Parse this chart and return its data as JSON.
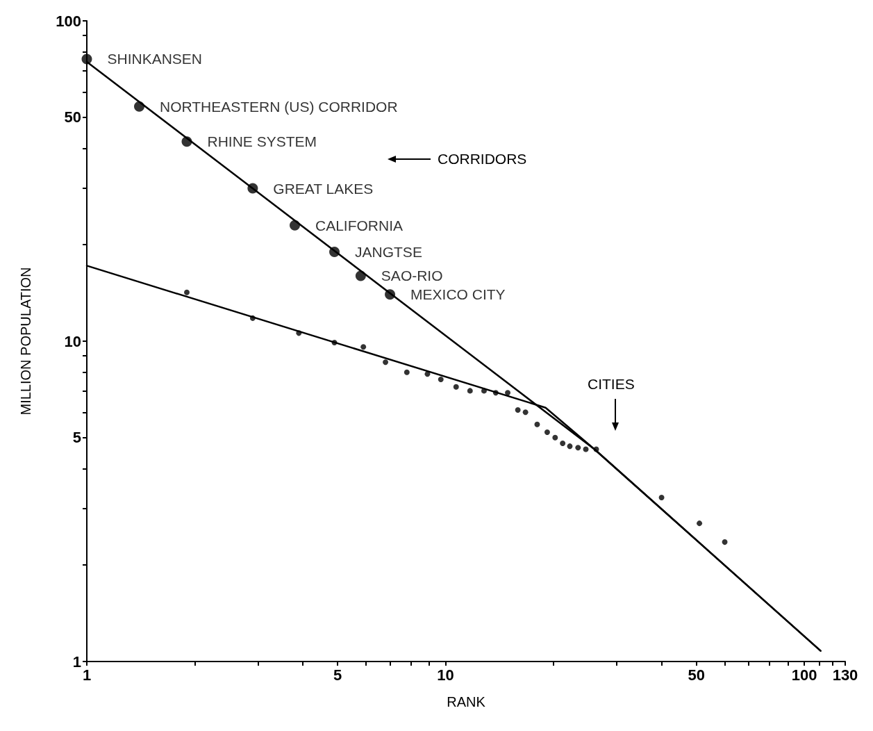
{
  "chart_data": {
    "type": "scatter",
    "xlabel": "RANK",
    "ylabel": "MILLION POPULATION",
    "log": "xy",
    "grid": false,
    "marker": "circle",
    "xlim": [
      1,
      130
    ],
    "ylim": [
      1,
      100
    ],
    "xticks": [
      1,
      {
        "value": 2,
        "label": null
      },
      {
        "value": 3,
        "label": null
      },
      {
        "value": 4,
        "label": null
      },
      5,
      {
        "value": 6,
        "label": null
      },
      {
        "value": 7,
        "label": null
      },
      {
        "value": 8,
        "label": null
      },
      {
        "value": 9,
        "label": null
      },
      10,
      {
        "value": 20,
        "label": null
      },
      {
        "value": 30,
        "label": null
      },
      {
        "value": 40,
        "label": null
      },
      50,
      {
        "value": 60,
        "label": null
      },
      {
        "value": 70,
        "label": null
      },
      {
        "value": 80,
        "label": null
      },
      {
        "value": 90,
        "label": null
      },
      100,
      {
        "value": 110,
        "label": null
      },
      {
        "value": 120,
        "label": null
      },
      130
    ],
    "yticks": [
      1,
      {
        "value": 2,
        "label": null
      },
      {
        "value": 3,
        "label": null
      },
      {
        "value": 4,
        "label": null
      },
      5,
      {
        "value": 6,
        "label": null
      },
      {
        "value": 7,
        "label": null
      },
      {
        "value": 8,
        "label": null
      },
      {
        "value": 9,
        "label": null
      },
      10,
      {
        "value": 20,
        "label": null
      },
      {
        "value": 30,
        "label": null
      },
      {
        "value": 40,
        "label": null
      },
      50,
      {
        "value": 60,
        "label": null
      },
      {
        "value": 70,
        "label": null
      },
      {
        "value": 80,
        "label": null
      },
      {
        "value": 90,
        "label": null
      },
      100
    ],
    "series": [
      {
        "type": "scatter",
        "color": "#000000",
        "x": [
          1,
          1.4,
          1.9,
          2.9,
          3.8,
          4.9,
          5.8,
          7
        ],
        "values": [
          76,
          54,
          42,
          30,
          23,
          19,
          16,
          14
        ],
        "value_labels": [
          "SHINKANSEN",
          "NORTHEASTERN (US) CORRIDOR",
          "RHINE SYSTEM",
          "GREAT LAKES",
          "CALIFORNIA",
          "JANGTSE",
          "SAO-RIO",
          "MEXICO CITY"
        ]
      },
      {
        "type": "scatter",
        "color": "#000000",
        "x": [
          1.9,
          2.9,
          3.9,
          4.9,
          5.9,
          6.8,
          7.8,
          8.9,
          9.7,
          10.7,
          11.7,
          12.8,
          13.8,
          14.9,
          15.9,
          16.7,
          18,
          19.2,
          20.2,
          21.2,
          22.2,
          23.4,
          24.6,
          26.3,
          40,
          51,
          60
        ],
        "values": [
          14.2,
          11.8,
          10.6,
          9.9,
          9.6,
          8.6,
          8.0,
          7.9,
          7.6,
          7.2,
          7.0,
          7.0,
          6.9,
          6.9,
          6.1,
          6.0,
          5.5,
          5.2,
          5.0,
          4.8,
          4.7,
          4.65,
          4.6,
          4.6,
          3.25,
          2.7,
          2.36
        ]
      },
      {
        "type": "line",
        "color": "#000000",
        "marker": "none",
        "x": [
          1,
          26,
          111
        ],
        "values": [
          74.5,
          4.6,
          1.08
        ]
      },
      {
        "type": "line",
        "color": "#000000",
        "marker": "none",
        "x": [
          1,
          19,
          26,
          111
        ],
        "values": [
          17.2,
          6.2,
          4.6,
          1.08
        ]
      }
    ],
    "annotations": [
      "CORRIDORS",
      "CITIES"
    ]
  }
}
